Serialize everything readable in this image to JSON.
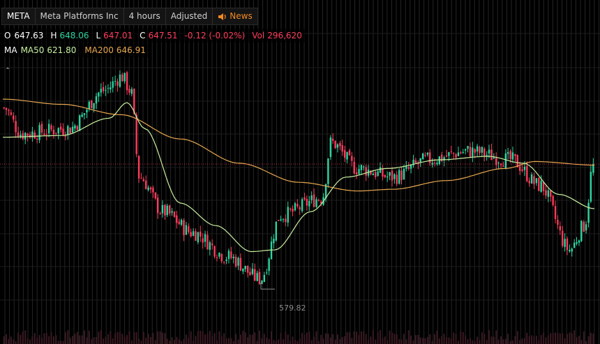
{
  "header": {
    "ticker": "META",
    "company": "Meta Platforms Inc",
    "interval": "4 hours",
    "adjustment": "Adjusted",
    "news_label": "News",
    "news_icon": "speaker-icon"
  },
  "ohlc": {
    "open_label": "O",
    "open": "647.63",
    "high_label": "H",
    "high": "648.06",
    "low_label": "L",
    "low": "647.01",
    "close_label": "C",
    "close": "647.51",
    "change": "-0.12 (-0.02%)",
    "vol_label": "Vol",
    "volume": "296,620"
  },
  "ma": {
    "label": "MA",
    "ma50_label": "MA50",
    "ma50": "621.80",
    "ma200_label": "MA200",
    "ma200": "646.91"
  },
  "collapse_icon": "chevron-up-icon",
  "annotation": {
    "low_marker": "579.82"
  },
  "colors": {
    "up": "#2bd5a0",
    "down": "#ff3c5c",
    "ma50": "#c8f0a0",
    "ma200": "#e8a850",
    "news": "#f08a24",
    "background": "#000000"
  },
  "chart_data": {
    "type": "candlestick",
    "min_low": 579.82,
    "last_close": 647.51,
    "price_anchors": [
      {
        "pos": 0.0,
        "price": 680
      },
      {
        "pos": 0.03,
        "price": 665
      },
      {
        "pos": 0.11,
        "price": 668
      },
      {
        "pos": 0.17,
        "price": 690
      },
      {
        "pos": 0.2,
        "price": 698
      },
      {
        "pos": 0.215,
        "price": 690
      },
      {
        "pos": 0.23,
        "price": 640
      },
      {
        "pos": 0.27,
        "price": 620
      },
      {
        "pos": 0.32,
        "price": 608
      },
      {
        "pos": 0.38,
        "price": 594
      },
      {
        "pos": 0.435,
        "price": 581
      },
      {
        "pos": 0.47,
        "price": 618
      },
      {
        "pos": 0.54,
        "price": 628
      },
      {
        "pos": 0.555,
        "price": 660
      },
      {
        "pos": 0.6,
        "price": 645
      },
      {
        "pos": 0.66,
        "price": 640
      },
      {
        "pos": 0.72,
        "price": 650
      },
      {
        "pos": 0.79,
        "price": 655
      },
      {
        "pos": 0.86,
        "price": 650
      },
      {
        "pos": 0.91,
        "price": 635
      },
      {
        "pos": 0.96,
        "price": 598
      },
      {
        "pos": 0.985,
        "price": 612
      },
      {
        "pos": 1.0,
        "price": 647.5
      }
    ],
    "ma50_anchors": [
      {
        "pos": 0.0,
        "price": 663
      },
      {
        "pos": 0.1,
        "price": 664
      },
      {
        "pos": 0.18,
        "price": 674
      },
      {
        "pos": 0.21,
        "price": 683
      },
      {
        "pos": 0.24,
        "price": 668
      },
      {
        "pos": 0.3,
        "price": 625
      },
      {
        "pos": 0.36,
        "price": 612
      },
      {
        "pos": 0.42,
        "price": 597
      },
      {
        "pos": 0.46,
        "price": 598
      },
      {
        "pos": 0.52,
        "price": 620
      },
      {
        "pos": 0.58,
        "price": 640
      },
      {
        "pos": 0.65,
        "price": 645
      },
      {
        "pos": 0.74,
        "price": 650
      },
      {
        "pos": 0.82,
        "price": 652
      },
      {
        "pos": 0.88,
        "price": 648
      },
      {
        "pos": 0.94,
        "price": 630
      },
      {
        "pos": 1.0,
        "price": 621.8
      }
    ],
    "ma200_anchors": [
      {
        "pos": 0.0,
        "price": 685
      },
      {
        "pos": 0.1,
        "price": 682
      },
      {
        "pos": 0.2,
        "price": 676
      },
      {
        "pos": 0.3,
        "price": 662
      },
      {
        "pos": 0.4,
        "price": 648
      },
      {
        "pos": 0.5,
        "price": 637
      },
      {
        "pos": 0.6,
        "price": 632
      },
      {
        "pos": 0.66,
        "price": 633
      },
      {
        "pos": 0.75,
        "price": 638
      },
      {
        "pos": 0.85,
        "price": 645
      },
      {
        "pos": 0.9,
        "price": 649
      },
      {
        "pos": 1.0,
        "price": 646.91
      }
    ],
    "price_range": [
      565,
      710
    ],
    "grid": true,
    "last_price_line": true
  }
}
